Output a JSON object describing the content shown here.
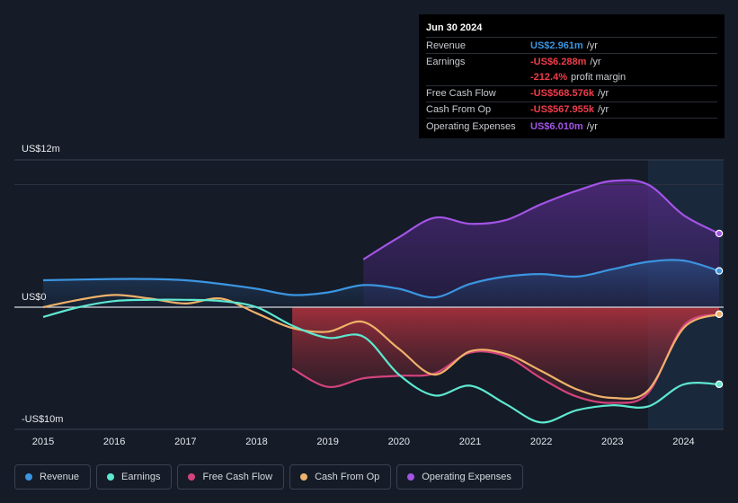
{
  "tooltip": {
    "date": "Jun 30 2024",
    "rows": [
      {
        "label": "Revenue",
        "value": "US$2.961m",
        "unit": "/yr",
        "color": "#3b95e0"
      },
      {
        "label": "Earnings",
        "value": "-US$6.288m",
        "unit": "/yr",
        "color": "#ef3d4a"
      },
      {
        "label": "",
        "value": "-212.4%",
        "unit": "profit margin",
        "color": "#ef3d4a"
      },
      {
        "label": "Free Cash Flow",
        "value": "-US$568.576k",
        "unit": "/yr",
        "color": "#ef3d4a"
      },
      {
        "label": "Cash From Op",
        "value": "-US$567.955k",
        "unit": "/yr",
        "color": "#ef3d4a"
      },
      {
        "label": "Operating Expenses",
        "value": "US$6.010m",
        "unit": "/yr",
        "color": "#a354e6"
      }
    ]
  },
  "legend": [
    {
      "label": "Revenue",
      "color": "#3b95e0"
    },
    {
      "label": "Earnings",
      "color": "#5ee8d0"
    },
    {
      "label": "Free Cash Flow",
      "color": "#d4437c"
    },
    {
      "label": "Cash From Op",
      "color": "#efb26a"
    },
    {
      "label": "Operating Expenses",
      "color": "#a354e6"
    }
  ],
  "chart_data": {
    "type": "line",
    "title": "",
    "units": "US$ millions",
    "ylim": [
      -10,
      12
    ],
    "y_tick_labels": [
      {
        "value": 12,
        "label": "US$12m"
      },
      {
        "value": 0,
        "label": "US$0"
      },
      {
        "value": -10,
        "label": "-US$10m"
      }
    ],
    "x_tick_labels": [
      "2015",
      "2016",
      "2017",
      "2018",
      "2019",
      "2020",
      "2021",
      "2022",
      "2023",
      "2024"
    ],
    "xlim": [
      2015.0,
      2024.55
    ],
    "highlight_start": 2023.5,
    "series": [
      {
        "name": "Revenue",
        "color": "#3b95e0",
        "points": [
          [
            2015.0,
            2.2
          ],
          [
            2016.0,
            2.3
          ],
          [
            2016.5,
            2.3
          ],
          [
            2017.0,
            2.2
          ],
          [
            2017.5,
            1.9
          ],
          [
            2018.0,
            1.5
          ],
          [
            2018.5,
            1.0
          ],
          [
            2019.0,
            1.2
          ],
          [
            2019.5,
            1.8
          ],
          [
            2020.0,
            1.5
          ],
          [
            2020.5,
            0.8
          ],
          [
            2021.0,
            1.9
          ],
          [
            2021.5,
            2.5
          ],
          [
            2022.0,
            2.7
          ],
          [
            2022.5,
            2.5
          ],
          [
            2023.0,
            3.1
          ],
          [
            2023.5,
            3.7
          ],
          [
            2024.0,
            3.8
          ],
          [
            2024.5,
            2.96
          ]
        ]
      },
      {
        "name": "Earnings",
        "color": "#5ee8d0",
        "points": [
          [
            2015.0,
            -0.8
          ],
          [
            2015.5,
            0.0
          ],
          [
            2016.0,
            0.5
          ],
          [
            2016.5,
            0.6
          ],
          [
            2017.0,
            0.6
          ],
          [
            2017.5,
            0.5
          ],
          [
            2018.0,
            0.0
          ],
          [
            2018.5,
            -1.5
          ],
          [
            2019.0,
            -2.5
          ],
          [
            2019.5,
            -2.4
          ],
          [
            2020.0,
            -5.5
          ],
          [
            2020.5,
            -7.2
          ],
          [
            2021.0,
            -6.4
          ],
          [
            2021.5,
            -7.9
          ],
          [
            2022.0,
            -9.4
          ],
          [
            2022.5,
            -8.4
          ],
          [
            2023.0,
            -8.0
          ],
          [
            2023.5,
            -8.1
          ],
          [
            2024.0,
            -6.3
          ],
          [
            2024.5,
            -6.29
          ]
        ]
      },
      {
        "name": "Free Cash Flow",
        "color": "#d4437c",
        "points": [
          [
            2018.5,
            -5.0
          ],
          [
            2019.0,
            -6.5
          ],
          [
            2019.5,
            -5.8
          ],
          [
            2020.0,
            -5.6
          ],
          [
            2020.5,
            -5.4
          ],
          [
            2021.0,
            -3.7
          ],
          [
            2021.5,
            -4.0
          ],
          [
            2022.0,
            -5.8
          ],
          [
            2022.5,
            -7.3
          ],
          [
            2023.0,
            -7.8
          ],
          [
            2023.5,
            -7.0
          ],
          [
            2024.0,
            -1.5
          ],
          [
            2024.5,
            -0.57
          ]
        ]
      },
      {
        "name": "Cash From Op",
        "color": "#efb26a",
        "points": [
          [
            2015.0,
            0.0
          ],
          [
            2015.5,
            0.6
          ],
          [
            2016.0,
            1.0
          ],
          [
            2016.5,
            0.7
          ],
          [
            2017.0,
            0.3
          ],
          [
            2017.5,
            0.7
          ],
          [
            2018.0,
            -0.5
          ],
          [
            2018.5,
            -1.7
          ],
          [
            2019.0,
            -2.0
          ],
          [
            2019.5,
            -1.2
          ],
          [
            2020.0,
            -3.4
          ],
          [
            2020.5,
            -5.5
          ],
          [
            2021.0,
            -3.6
          ],
          [
            2021.5,
            -3.8
          ],
          [
            2022.0,
            -5.2
          ],
          [
            2022.5,
            -6.7
          ],
          [
            2023.0,
            -7.4
          ],
          [
            2023.5,
            -6.8
          ],
          [
            2024.0,
            -1.7
          ],
          [
            2024.5,
            -0.57
          ]
        ]
      },
      {
        "name": "Operating Expenses",
        "color": "#a354e6",
        "points": [
          [
            2019.5,
            3.9
          ],
          [
            2020.0,
            5.7
          ],
          [
            2020.5,
            7.3
          ],
          [
            2021.0,
            6.8
          ],
          [
            2021.5,
            7.1
          ],
          [
            2022.0,
            8.4
          ],
          [
            2022.5,
            9.5
          ],
          [
            2023.0,
            10.3
          ],
          [
            2023.5,
            10.0
          ],
          [
            2024.0,
            7.5
          ],
          [
            2024.5,
            6.01
          ]
        ]
      }
    ]
  }
}
